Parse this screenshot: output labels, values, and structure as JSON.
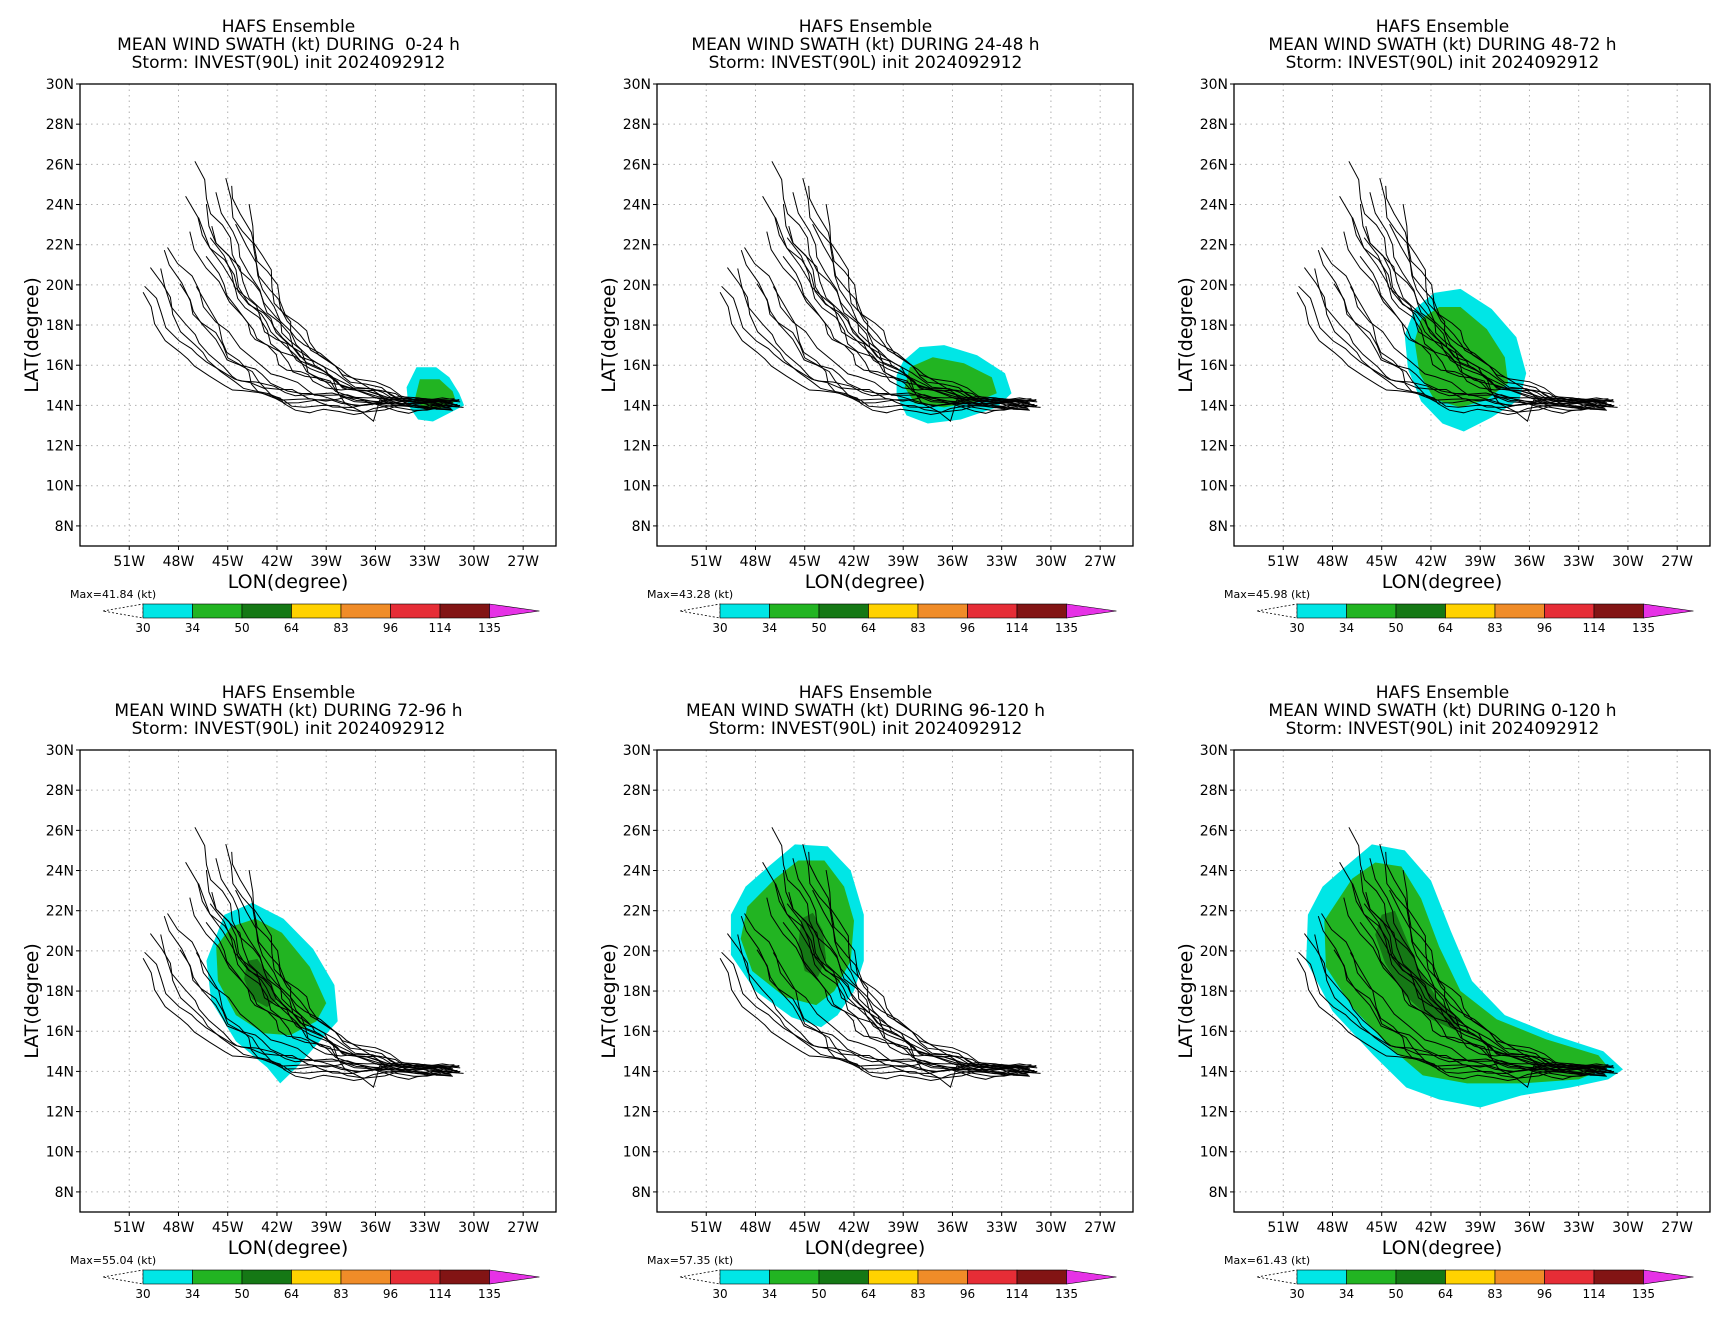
{
  "colorbar": {
    "levels": [
      "30",
      "34",
      "50",
      "64",
      "83",
      "96",
      "114",
      "135"
    ],
    "colors": [
      "#00e6e6",
      "#22b422",
      "#157815",
      "#ffd200",
      "#f08c28",
      "#e62d36",
      "#821414",
      "#e632e6"
    ],
    "units": "(kt)"
  },
  "panels": [
    {
      "title1": "HAFS Ensemble",
      "title2": "MEAN WIND SWATH (kt) DURING  0-24 h",
      "title3": "Storm: INVEST(90L) init 2024092912",
      "max_label": "Max=41.84 (kt)",
      "xlabel": "LON(degree)",
      "ylabel": "LAT(degree)"
    },
    {
      "title1": "HAFS Ensemble",
      "title2": "MEAN WIND SWATH (kt) DURING 24-48 h",
      "title3": "Storm: INVEST(90L) init 2024092912",
      "max_label": "Max=43.28 (kt)",
      "xlabel": "LON(degree)",
      "ylabel": "LAT(degree)"
    },
    {
      "title1": "HAFS Ensemble",
      "title2": "MEAN WIND SWATH (kt) DURING 48-72 h",
      "title3": "Storm: INVEST(90L) init 2024092912",
      "max_label": "Max=45.98 (kt)",
      "xlabel": "LON(degree)",
      "ylabel": "LAT(degree)"
    },
    {
      "title1": "HAFS Ensemble",
      "title2": "MEAN WIND SWATH (kt) DURING 72-96 h",
      "title3": "Storm: INVEST(90L) init 2024092912",
      "max_label": "Max=55.04 (kt)",
      "xlabel": "LON(degree)",
      "ylabel": "LAT(degree)"
    },
    {
      "title1": "HAFS Ensemble",
      "title2": "MEAN WIND SWATH (kt) DURING 96-120 h",
      "title3": "Storm: INVEST(90L) init 2024092912",
      "max_label": "Max=57.35 (kt)",
      "xlabel": "LON(degree)",
      "ylabel": "LAT(degree)"
    },
    {
      "title1": "HAFS Ensemble",
      "title2": "MEAN WIND SWATH (kt) DURING 0-120 h",
      "title3": "Storm: INVEST(90L) init 2024092912",
      "max_label": "Max=61.43 (kt)",
      "xlabel": "LON(degree)",
      "ylabel": "LAT(degree)"
    }
  ],
  "chart_data": [
    {
      "type": "map",
      "title": "HAFS Ensemble",
      "subtitle": "MEAN WIND SWATH (kt) DURING  0-24 h",
      "xlabel": "LON(degree)",
      "ylabel": "LAT(degree)",
      "xlim": [
        -54,
        -25
      ],
      "ylim": [
        7,
        30
      ],
      "xticks": [
        "51W",
        "48W",
        "45W",
        "42W",
        "39W",
        "36W",
        "33W",
        "30W",
        "27W"
      ],
      "yticks": [
        "8N",
        "10N",
        "12N",
        "14N",
        "16N",
        "18N",
        "20N",
        "22N",
        "24N",
        "26N",
        "28N",
        "30N"
      ],
      "grid": true,
      "max_wind_kt": 41.84,
      "swath": [
        {
          "level": "30",
          "polygon": [
            [
              -33.5,
              15.9
            ],
            [
              -32.3,
              15.9
            ],
            [
              -31.5,
              15.4
            ],
            [
              -30.9,
              14.6
            ],
            [
              -30.6,
              14.0
            ],
            [
              -31.3,
              13.7
            ],
            [
              -32.5,
              13.2
            ],
            [
              -33.4,
              13.3
            ],
            [
              -34.0,
              14.0
            ],
            [
              -34.1,
              14.9
            ]
          ]
        },
        {
          "level": "34",
          "polygon": [
            [
              -33.3,
              15.3
            ],
            [
              -32.1,
              15.3
            ],
            [
              -31.3,
              14.7
            ],
            [
              -31.1,
              14.2
            ],
            [
              -31.9,
              13.9
            ],
            [
              -33.0,
              13.8
            ],
            [
              -33.6,
              14.3
            ]
          ]
        }
      ]
    },
    {
      "type": "map",
      "title": "HAFS Ensemble",
      "subtitle": "MEAN WIND SWATH (kt) DURING 24-48 h",
      "xlabel": "LON(degree)",
      "ylabel": "LAT(degree)",
      "xlim": [
        -54,
        -25
      ],
      "ylim": [
        7,
        30
      ],
      "xticks": [
        "51W",
        "48W",
        "45W",
        "42W",
        "39W",
        "36W",
        "33W",
        "30W",
        "27W"
      ],
      "yticks": [
        "8N",
        "10N",
        "12N",
        "14N",
        "16N",
        "18N",
        "20N",
        "22N",
        "24N",
        "26N",
        "28N",
        "30N"
      ],
      "grid": true,
      "max_wind_kt": 43.28,
      "swath": [
        {
          "level": "30",
          "polygon": [
            [
              -39.0,
              16.2
            ],
            [
              -38.0,
              16.9
            ],
            [
              -36.5,
              17.0
            ],
            [
              -34.5,
              16.5
            ],
            [
              -32.8,
              15.6
            ],
            [
              -32.4,
              14.6
            ],
            [
              -33.3,
              13.9
            ],
            [
              -35.5,
              13.3
            ],
            [
              -37.5,
              13.1
            ],
            [
              -38.8,
              13.5
            ],
            [
              -39.4,
              14.5
            ],
            [
              -39.4,
              15.5
            ]
          ]
        },
        {
          "level": "34",
          "polygon": [
            [
              -38.6,
              15.9
            ],
            [
              -37.2,
              16.4
            ],
            [
              -35.3,
              16.1
            ],
            [
              -33.6,
              15.4
            ],
            [
              -33.3,
              14.6
            ],
            [
              -34.5,
              14.2
            ],
            [
              -36.5,
              13.9
            ],
            [
              -38.3,
              14.1
            ],
            [
              -38.9,
              14.9
            ]
          ]
        }
      ]
    },
    {
      "type": "map",
      "title": "HAFS Ensemble",
      "subtitle": "MEAN WIND SWATH (kt) DURING 48-72 h",
      "xlabel": "LON(degree)",
      "ylabel": "LAT(degree)",
      "xlim": [
        -54,
        -25
      ],
      "ylim": [
        7,
        30
      ],
      "xticks": [
        "51W",
        "48W",
        "45W",
        "42W",
        "39W",
        "36W",
        "33W",
        "30W",
        "27W"
      ],
      "yticks": [
        "8N",
        "10N",
        "12N",
        "14N",
        "16N",
        "18N",
        "20N",
        "22N",
        "24N",
        "26N",
        "28N",
        "30N"
      ],
      "grid": true,
      "max_wind_kt": 45.98,
      "swath": [
        {
          "level": "30",
          "polygon": [
            [
              -43.0,
              18.8
            ],
            [
              -41.8,
              19.6
            ],
            [
              -40.2,
              19.8
            ],
            [
              -38.3,
              18.8
            ],
            [
              -36.8,
              17.4
            ],
            [
              -36.2,
              15.6
            ],
            [
              -36.6,
              14.3
            ],
            [
              -38.3,
              13.4
            ],
            [
              -40.0,
              12.7
            ],
            [
              -41.3,
              13.1
            ],
            [
              -42.6,
              14.2
            ],
            [
              -43.4,
              15.8
            ],
            [
              -43.6,
              17.5
            ]
          ]
        },
        {
          "level": "34",
          "polygon": [
            [
              -42.6,
              18.3
            ],
            [
              -41.5,
              18.9
            ],
            [
              -40.2,
              18.9
            ],
            [
              -38.6,
              17.8
            ],
            [
              -37.5,
              16.4
            ],
            [
              -37.3,
              15.1
            ],
            [
              -38.6,
              14.3
            ],
            [
              -40.2,
              13.9
            ],
            [
              -41.8,
              14.3
            ],
            [
              -42.7,
              15.6
            ],
            [
              -43.0,
              17.2
            ]
          ]
        }
      ]
    },
    {
      "type": "map",
      "title": "HAFS Ensemble",
      "subtitle": "MEAN WIND SWATH (kt) DURING 72-96 h",
      "xlabel": "LON(degree)",
      "ylabel": "LAT(degree)",
      "xlim": [
        -54,
        -25
      ],
      "ylim": [
        7,
        30
      ],
      "xticks": [
        "51W",
        "48W",
        "45W",
        "42W",
        "39W",
        "36W",
        "33W",
        "30W",
        "27W"
      ],
      "yticks": [
        "8N",
        "10N",
        "12N",
        "14N",
        "16N",
        "18N",
        "20N",
        "22N",
        "24N",
        "26N",
        "28N",
        "30N"
      ],
      "grid": true,
      "max_wind_kt": 55.04,
      "swath": [
        {
          "level": "30",
          "polygon": [
            [
              -45.2,
              21.8
            ],
            [
              -43.5,
              22.4
            ],
            [
              -41.6,
              21.6
            ],
            [
              -39.8,
              20.1
            ],
            [
              -38.5,
              18.3
            ],
            [
              -38.3,
              16.5
            ],
            [
              -39.5,
              15.4
            ],
            [
              -40.8,
              14.2
            ],
            [
              -41.8,
              13.4
            ],
            [
              -42.6,
              14.2
            ],
            [
              -44.5,
              15.5
            ],
            [
              -46.0,
              17.5
            ],
            [
              -46.3,
              19.5
            ]
          ]
        },
        {
          "level": "34",
          "polygon": [
            [
              -44.8,
              21.2
            ],
            [
              -43.3,
              21.6
            ],
            [
              -41.7,
              20.9
            ],
            [
              -40.0,
              19.2
            ],
            [
              -39.0,
              17.4
            ],
            [
              -39.6,
              16.5
            ],
            [
              -41.2,
              15.8
            ],
            [
              -42.8,
              15.9
            ],
            [
              -44.5,
              16.8
            ],
            [
              -45.6,
              18.5
            ],
            [
              -45.7,
              20.2
            ]
          ]
        },
        {
          "level": "50",
          "polygon": [
            [
              -43.8,
              19.5
            ],
            [
              -43.2,
              19.6
            ],
            [
              -42.5,
              18.8
            ],
            [
              -42.0,
              17.6
            ],
            [
              -42.6,
              17.2
            ],
            [
              -43.5,
              17.6
            ],
            [
              -44.0,
              18.6
            ]
          ]
        }
      ]
    },
    {
      "type": "map",
      "title": "HAFS Ensemble",
      "subtitle": "MEAN WIND SWATH (kt) DURING 96-120 h",
      "xlabel": "LON(degree)",
      "ylabel": "LAT(degree)",
      "xlim": [
        -54,
        -25
      ],
      "ylim": [
        7,
        30
      ],
      "xticks": [
        "51W",
        "48W",
        "45W",
        "42W",
        "39W",
        "36W",
        "33W",
        "30W",
        "27W"
      ],
      "yticks": [
        "8N",
        "10N",
        "12N",
        "14N",
        "16N",
        "18N",
        "20N",
        "22N",
        "24N",
        "26N",
        "28N",
        "30N"
      ],
      "grid": true,
      "max_wind_kt": 57.35,
      "swath": [
        {
          "level": "30",
          "polygon": [
            [
              -47.2,
              24.2
            ],
            [
              -45.6,
              25.3
            ],
            [
              -43.6,
              25.2
            ],
            [
              -42.2,
              24.0
            ],
            [
              -41.4,
              21.8
            ],
            [
              -41.4,
              19.5
            ],
            [
              -42.0,
              18.0
            ],
            [
              -43.0,
              16.8
            ],
            [
              -44.0,
              16.2
            ],
            [
              -45.8,
              16.7
            ],
            [
              -48.0,
              18.0
            ],
            [
              -49.5,
              19.8
            ],
            [
              -49.5,
              21.8
            ],
            [
              -48.6,
              23.2
            ]
          ]
        },
        {
          "level": "34",
          "polygon": [
            [
              -46.8,
              23.6
            ],
            [
              -45.4,
              24.5
            ],
            [
              -43.8,
              24.5
            ],
            [
              -42.6,
              23.2
            ],
            [
              -42.0,
              21.5
            ],
            [
              -42.2,
              19.5
            ],
            [
              -43.2,
              18.0
            ],
            [
              -44.3,
              17.3
            ],
            [
              -46.2,
              17.7
            ],
            [
              -48.2,
              19.0
            ],
            [
              -48.9,
              20.6
            ],
            [
              -48.5,
              22.2
            ]
          ]
        },
        {
          "level": "50",
          "polygon": [
            [
              -45.2,
              21.6
            ],
            [
              -44.5,
              21.9
            ],
            [
              -43.9,
              21.0
            ],
            [
              -43.7,
              19.6
            ],
            [
              -44.2,
              18.7
            ],
            [
              -45.0,
              19.0
            ],
            [
              -45.4,
              20.3
            ]
          ]
        }
      ]
    },
    {
      "type": "map",
      "title": "HAFS Ensemble",
      "subtitle": "MEAN WIND SWATH (kt) DURING 0-120 h",
      "xlabel": "LON(degree)",
      "ylabel": "LAT(degree)",
      "xlim": [
        -54,
        -25
      ],
      "ylim": [
        7,
        30
      ],
      "xticks": [
        "51W",
        "48W",
        "45W",
        "42W",
        "39W",
        "36W",
        "33W",
        "30W",
        "27W"
      ],
      "yticks": [
        "8N",
        "10N",
        "12N",
        "14N",
        "16N",
        "18N",
        "20N",
        "22N",
        "24N",
        "26N",
        "28N",
        "30N"
      ],
      "grid": true,
      "max_wind_kt": 61.43,
      "swath": [
        {
          "level": "30",
          "polygon": [
            [
              -47.2,
              24.2
            ],
            [
              -45.6,
              25.3
            ],
            [
              -43.6,
              25.0
            ],
            [
              -42.0,
              23.5
            ],
            [
              -40.8,
              21.0
            ],
            [
              -39.5,
              18.5
            ],
            [
              -37.5,
              16.8
            ],
            [
              -34.5,
              15.8
            ],
            [
              -31.5,
              15.0
            ],
            [
              -30.3,
              14.1
            ],
            [
              -31.2,
              13.6
            ],
            [
              -33.5,
              13.2
            ],
            [
              -36.5,
              12.8
            ],
            [
              -39.0,
              12.2
            ],
            [
              -41.5,
              12.6
            ],
            [
              -43.5,
              13.2
            ],
            [
              -45.5,
              14.8
            ],
            [
              -48.0,
              17.0
            ],
            [
              -49.6,
              19.5
            ],
            [
              -49.5,
              21.8
            ],
            [
              -48.6,
              23.2
            ]
          ]
        },
        {
          "level": "34",
          "polygon": [
            [
              -46.8,
              23.6
            ],
            [
              -45.4,
              24.4
            ],
            [
              -43.8,
              24.2
            ],
            [
              -42.6,
              22.6
            ],
            [
              -41.5,
              20.2
            ],
            [
              -40.2,
              18.0
            ],
            [
              -38.0,
              16.6
            ],
            [
              -35.0,
              15.6
            ],
            [
              -31.8,
              14.8
            ],
            [
              -31.2,
              14.2
            ],
            [
              -33.0,
              13.6
            ],
            [
              -36.5,
              13.4
            ],
            [
              -39.8,
              13.4
            ],
            [
              -42.5,
              13.8
            ],
            [
              -44.5,
              15.2
            ],
            [
              -46.8,
              17.2
            ],
            [
              -48.4,
              19.2
            ],
            [
              -48.5,
              21.5
            ]
          ]
        },
        {
          "level": "50",
          "polygon": [
            [
              -45.0,
              21.8
            ],
            [
              -44.2,
              22.0
            ],
            [
              -43.6,
              20.8
            ],
            [
              -42.8,
              19.2
            ],
            [
              -41.6,
              17.6
            ],
            [
              -40.2,
              16.6
            ],
            [
              -40.4,
              16.0
            ],
            [
              -42.0,
              16.6
            ],
            [
              -43.6,
              17.8
            ],
            [
              -44.8,
              19.4
            ],
            [
              -45.4,
              20.8
            ]
          ]
        }
      ]
    }
  ]
}
